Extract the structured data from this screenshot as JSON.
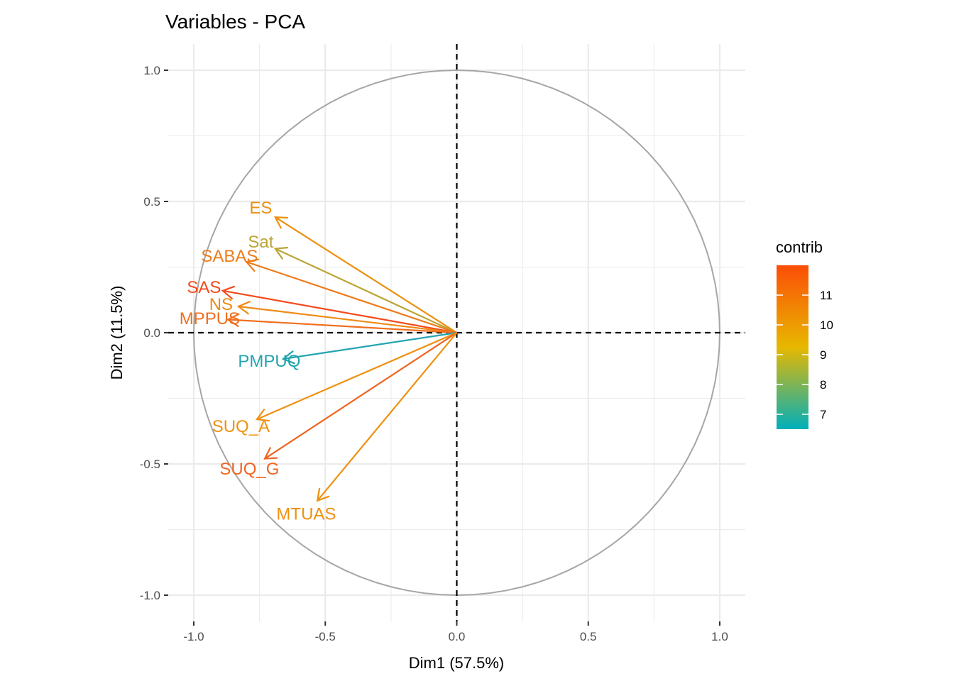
{
  "chart_data": {
    "type": "scatter",
    "subtype": "pca-variables-correlation-circle",
    "title": "Variables - PCA",
    "xlabel": "Dim1 (57.5%)",
    "ylabel": "Dim2 (11.5%)",
    "xlim": [
      -1.0,
      1.0
    ],
    "ylim": [
      -1.0,
      1.0
    ],
    "x_ticks": [
      -1.0,
      -0.5,
      0.0,
      0.5,
      1.0
    ],
    "x_tick_labels": [
      "-1.0",
      "-0.5",
      "0.0",
      "0.5",
      "1.0"
    ],
    "y_ticks": [
      -1.0,
      -0.5,
      0.0,
      0.5,
      1.0
    ],
    "y_tick_labels": [
      "-1.0",
      "-0.5",
      "0.0",
      "0.5",
      "1.0"
    ],
    "grid": true,
    "unit_circle": true,
    "reference_lines": [
      {
        "axis": "x",
        "value": 0,
        "style": "dashed"
      },
      {
        "axis": "y",
        "value": 0,
        "style": "dashed"
      }
    ],
    "variables": [
      {
        "name": "ES",
        "x": -0.69,
        "y": 0.44,
        "contrib": 10.0,
        "color": "#EB900F"
      },
      {
        "name": "Sat",
        "x": -0.69,
        "y": 0.32,
        "contrib": 8.6,
        "color": "#BBA534"
      },
      {
        "name": "SABAS",
        "x": -0.8,
        "y": 0.27,
        "contrib": 10.6,
        "color": "#EE7C1A"
      },
      {
        "name": "SAS",
        "x": -0.89,
        "y": 0.16,
        "contrib": 11.8,
        "color": "#F44A1D"
      },
      {
        "name": "NS",
        "x": -0.83,
        "y": 0.1,
        "contrib": 10.2,
        "color": "#EE8A16"
      },
      {
        "name": "MPPUS",
        "x": -0.87,
        "y": 0.05,
        "contrib": 10.9,
        "color": "#EF6F1F"
      },
      {
        "name": "PMPUQ",
        "x": -0.66,
        "y": -0.1,
        "contrib": 6.7,
        "color": "#22A4B0"
      },
      {
        "name": "SUQ_A",
        "x": -0.76,
        "y": -0.33,
        "contrib": 10.0,
        "color": "#EE9110"
      },
      {
        "name": "SUQ_G",
        "x": -0.73,
        "y": -0.48,
        "contrib": 11.0,
        "color": "#EE6420"
      },
      {
        "name": "MTUAS",
        "x": -0.53,
        "y": -0.64,
        "contrib": 10.0,
        "color": "#EE9110"
      }
    ],
    "legend": {
      "title": "contrib",
      "placement": "right",
      "type": "gradient",
      "range": [
        6.5,
        12.0
      ],
      "ticks": [
        7,
        8,
        9,
        10,
        11
      ],
      "tick_labels": [
        "7",
        "8",
        "9",
        "10",
        "11"
      ],
      "gradient_colors": [
        "#00AFBB",
        "#E7B800",
        "#FC4E07"
      ]
    }
  }
}
